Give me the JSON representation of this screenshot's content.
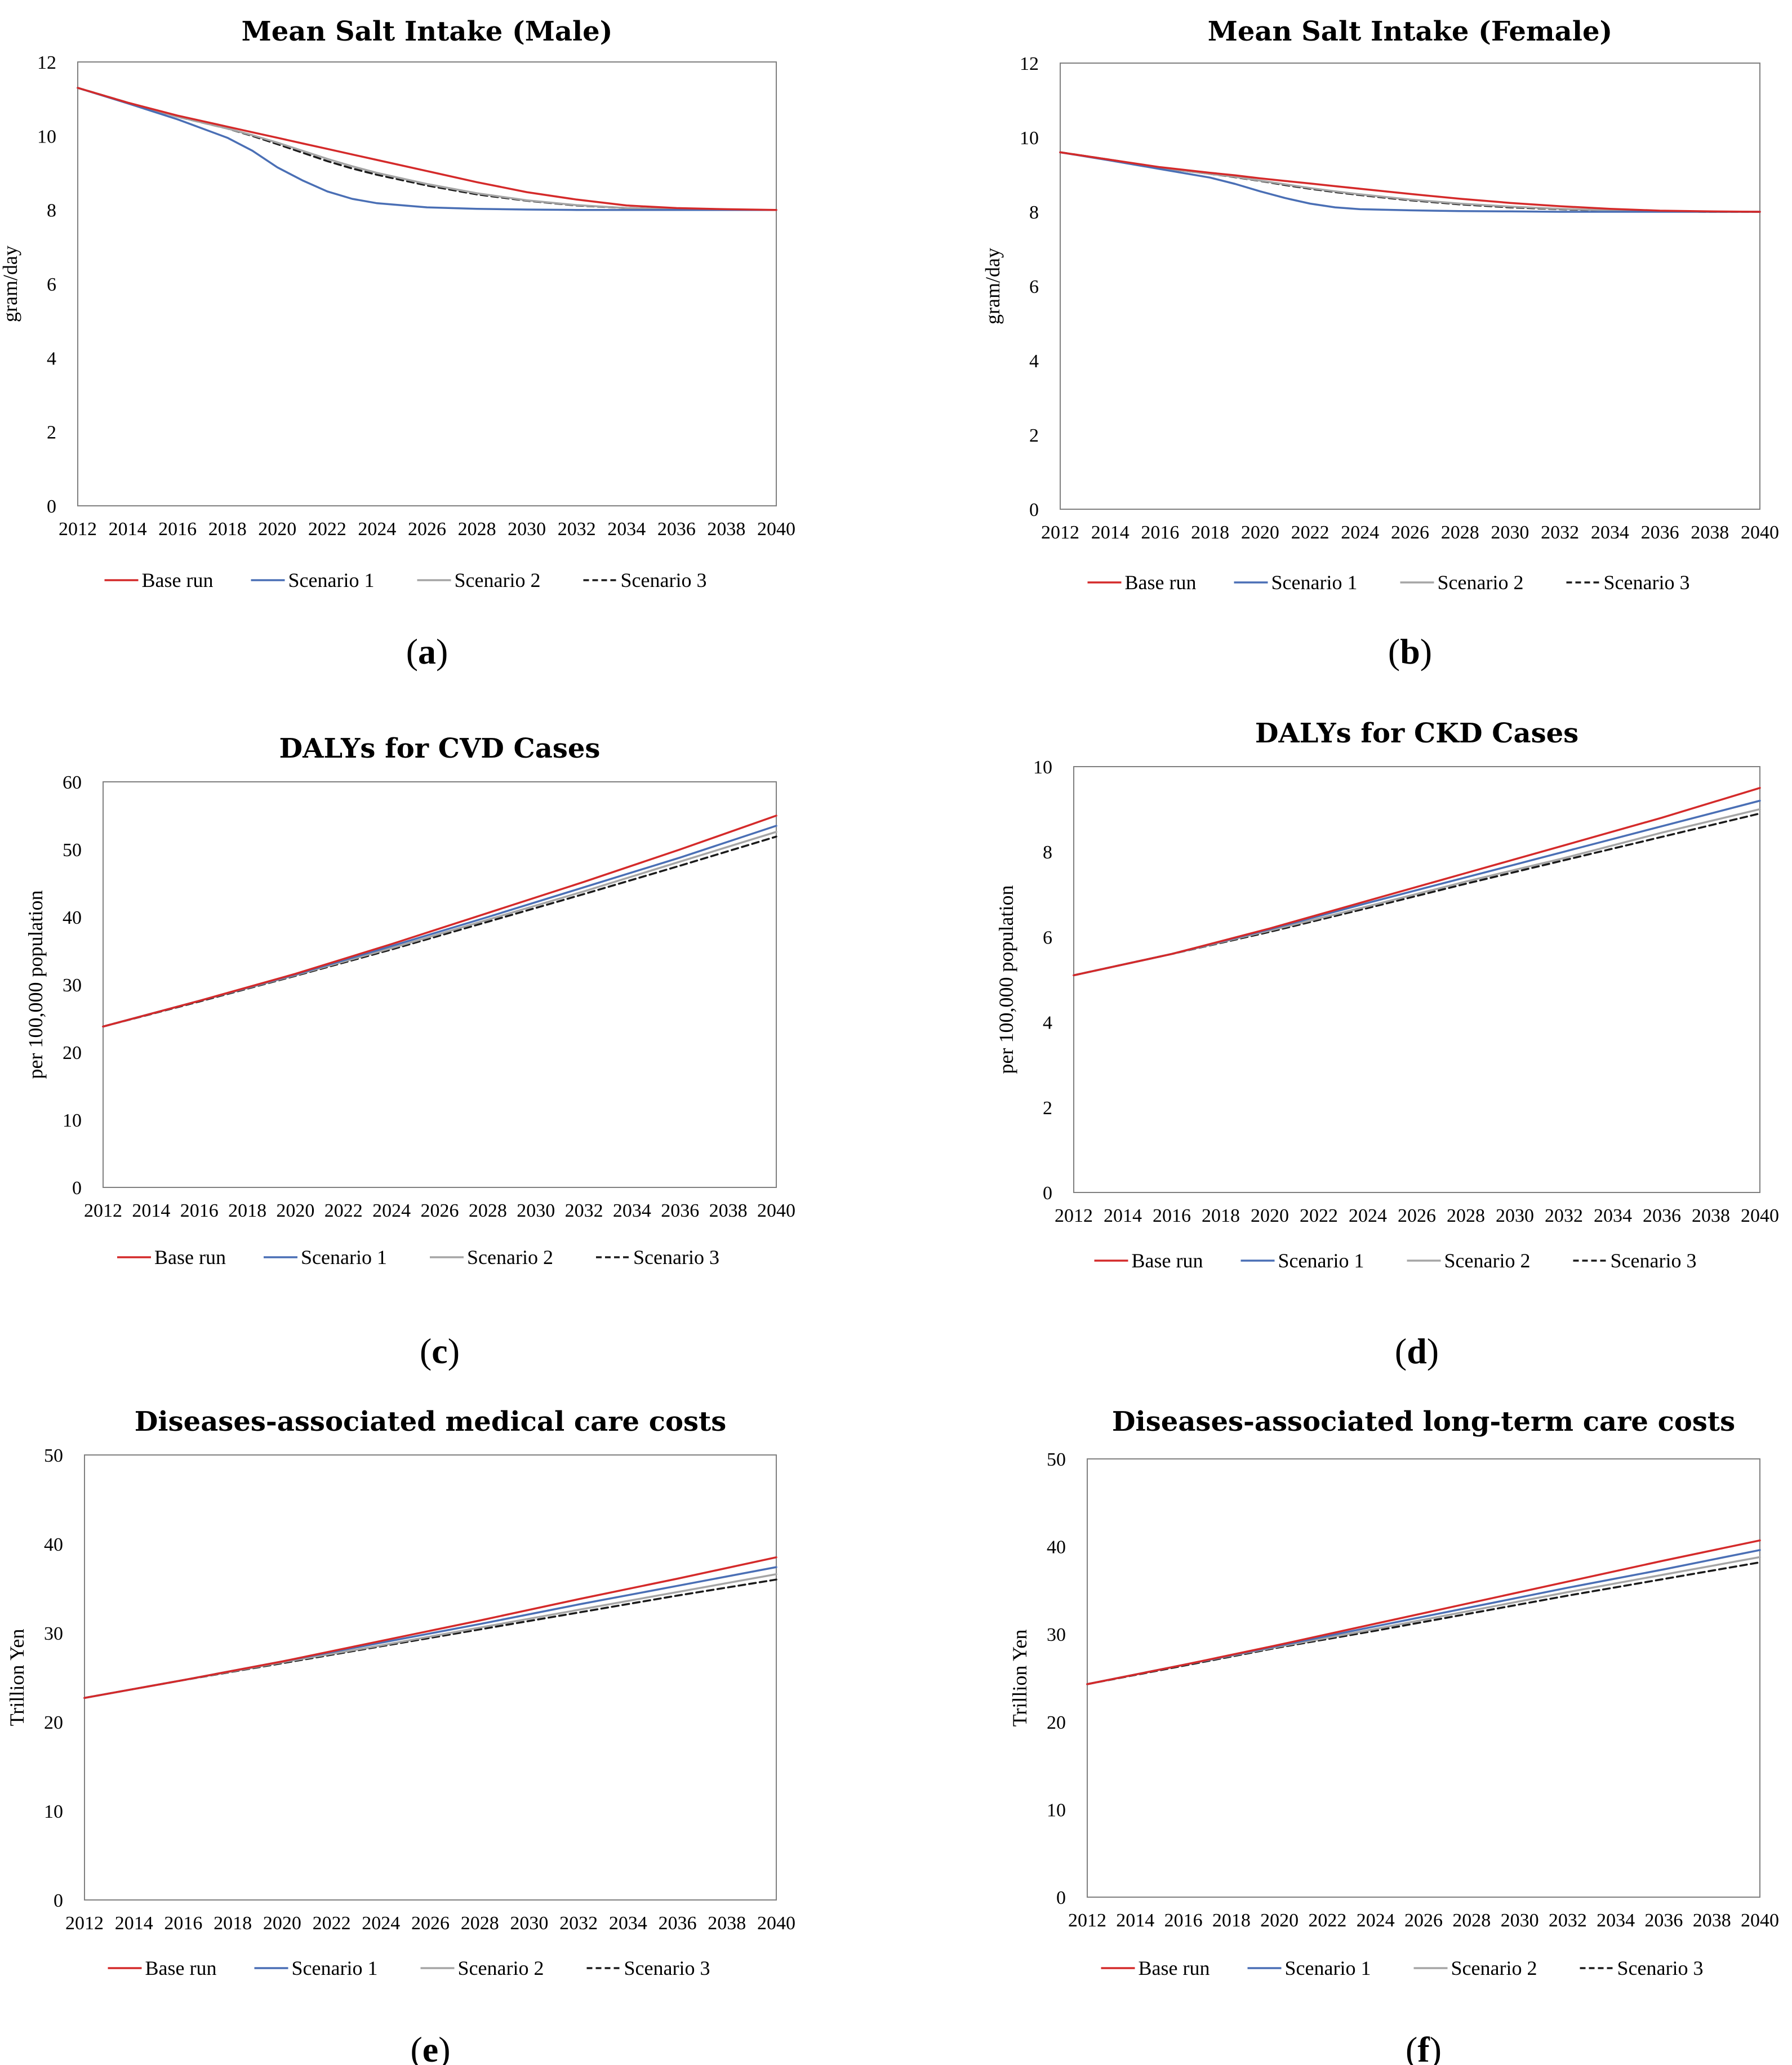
{
  "legend_style": {
    "Base run": {
      "color": "#d42a2a",
      "dash": ""
    },
    "Scenario 1": {
      "color": "#4a6fb5",
      "dash": ""
    },
    "Scenario 2": {
      "color": "#a5a5a5",
      "dash": ""
    },
    "Scenario 3": {
      "color": "#1a1a1a",
      "dash": "12,7"
    }
  },
  "chart_data": [
    {
      "panel": "a",
      "type": "line",
      "title": "Mean Salt Intake (Male)",
      "ylabel": "gram/day",
      "xlabel": "",
      "ylim": [
        0,
        12
      ],
      "yticks": [
        0,
        2,
        4,
        6,
        8,
        10,
        12
      ],
      "xticks": [
        2012,
        2014,
        2016,
        2018,
        2020,
        2022,
        2024,
        2026,
        2028,
        2030,
        2032,
        2034,
        2036,
        2038,
        2040
      ],
      "legend": "bottom",
      "x": [
        2012,
        2014,
        2016,
        2018,
        2019,
        2020,
        2021,
        2022,
        2023,
        2024,
        2026,
        2028,
        2030,
        2032,
        2034,
        2036,
        2038,
        2040
      ],
      "series": [
        {
          "name": "Base run",
          "values": [
            11.3,
            10.9,
            10.55,
            10.25,
            10.1,
            9.95,
            9.8,
            9.65,
            9.5,
            9.35,
            9.05,
            8.75,
            8.48,
            8.28,
            8.12,
            8.05,
            8.02,
            8.0
          ]
        },
        {
          "name": "Scenario 1",
          "values": [
            11.3,
            10.88,
            10.45,
            9.95,
            9.6,
            9.15,
            8.8,
            8.5,
            8.3,
            8.18,
            8.07,
            8.03,
            8.01,
            8.0,
            8.0,
            8.0,
            8.0,
            8.0
          ]
        },
        {
          "name": "Scenario 2",
          "values": [
            11.3,
            10.9,
            10.52,
            10.2,
            10.02,
            9.82,
            9.6,
            9.38,
            9.18,
            9.0,
            8.7,
            8.45,
            8.26,
            8.13,
            8.05,
            8.02,
            8.0,
            8.0
          ]
        },
        {
          "name": "Scenario 3",
          "values": [
            11.3,
            10.9,
            10.52,
            10.2,
            10.0,
            9.78,
            9.55,
            9.32,
            9.12,
            8.95,
            8.66,
            8.42,
            8.25,
            8.12,
            8.05,
            8.02,
            8.0,
            8.0
          ]
        }
      ]
    },
    {
      "panel": "b",
      "type": "line",
      "title": "Mean Salt Intake (Female)",
      "ylabel": "gram/day",
      "xlabel": "",
      "ylim": [
        0,
        12
      ],
      "yticks": [
        0,
        2,
        4,
        6,
        8,
        10,
        12
      ],
      "xticks": [
        2012,
        2014,
        2016,
        2018,
        2020,
        2022,
        2024,
        2026,
        2028,
        2030,
        2032,
        2034,
        2036,
        2038,
        2040
      ],
      "legend": "bottom",
      "x": [
        2012,
        2014,
        2016,
        2018,
        2019,
        2020,
        2021,
        2022,
        2023,
        2024,
        2026,
        2028,
        2030,
        2032,
        2034,
        2036,
        2038,
        2040
      ],
      "series": [
        {
          "name": "Base run",
          "values": [
            9.6,
            9.4,
            9.2,
            9.05,
            8.98,
            8.9,
            8.83,
            8.76,
            8.69,
            8.62,
            8.48,
            8.35,
            8.24,
            8.15,
            8.08,
            8.03,
            8.01,
            8.0
          ]
        },
        {
          "name": "Scenario 1",
          "values": [
            9.6,
            9.38,
            9.15,
            8.92,
            8.75,
            8.55,
            8.37,
            8.22,
            8.12,
            8.07,
            8.04,
            8.02,
            8.01,
            8.0,
            8.0,
            8.0,
            8.0,
            8.0
          ]
        },
        {
          "name": "Scenario 2",
          "values": [
            9.6,
            9.4,
            9.18,
            9.02,
            8.94,
            8.84,
            8.74,
            8.64,
            8.55,
            8.47,
            8.33,
            8.22,
            8.14,
            8.08,
            8.04,
            8.02,
            8.0,
            8.0
          ]
        },
        {
          "name": "Scenario 3",
          "values": [
            9.6,
            9.4,
            9.18,
            9.02,
            8.93,
            8.83,
            8.72,
            8.62,
            8.53,
            8.45,
            8.31,
            8.2,
            8.12,
            8.07,
            8.03,
            8.01,
            8.0,
            8.0
          ]
        }
      ]
    },
    {
      "panel": "c",
      "type": "line",
      "title": "DALYs for CVD Cases",
      "ylabel": "per 100,000 population",
      "xlabel": "",
      "ylim": [
        0,
        60
      ],
      "yticks": [
        0,
        10,
        20,
        30,
        40,
        50,
        60
      ],
      "xticks": [
        2012,
        2014,
        2016,
        2018,
        2020,
        2022,
        2024,
        2026,
        2028,
        2030,
        2032,
        2034,
        2036,
        2038,
        2040
      ],
      "legend": "bottom",
      "x": [
        2012,
        2016,
        2020,
        2024,
        2028,
        2032,
        2036,
        2040
      ],
      "series": [
        {
          "name": "Base run",
          "values": [
            23.8,
            27.6,
            31.6,
            36.0,
            40.6,
            45.2,
            50.0,
            55.0
          ]
        },
        {
          "name": "Scenario 1",
          "values": [
            23.8,
            27.6,
            31.5,
            35.7,
            40.0,
            44.4,
            48.8,
            53.5
          ]
        },
        {
          "name": "Scenario 2",
          "values": [
            23.8,
            27.6,
            31.4,
            35.4,
            39.6,
            43.8,
            48.2,
            52.6
          ]
        },
        {
          "name": "Scenario 3",
          "values": [
            23.8,
            27.5,
            31.3,
            35.2,
            39.3,
            43.4,
            47.6,
            51.9
          ]
        }
      ]
    },
    {
      "panel": "d",
      "type": "line",
      "title": "DALYs for CKD Cases",
      "ylabel": "per 100,000 population",
      "xlabel": "",
      "ylim": [
        0,
        10
      ],
      "yticks": [
        0,
        2,
        4,
        6,
        8,
        10
      ],
      "xticks": [
        2012,
        2014,
        2016,
        2018,
        2020,
        2022,
        2024,
        2026,
        2028,
        2030,
        2032,
        2034,
        2036,
        2038,
        2040
      ],
      "legend": "bottom",
      "x": [
        2012,
        2016,
        2020,
        2024,
        2028,
        2032,
        2036,
        2040
      ],
      "series": [
        {
          "name": "Base run",
          "values": [
            5.1,
            5.6,
            6.2,
            6.85,
            7.5,
            8.15,
            8.8,
            9.5
          ]
        },
        {
          "name": "Scenario 1",
          "values": [
            5.1,
            5.6,
            6.18,
            6.8,
            7.4,
            8.0,
            8.6,
            9.2
          ]
        },
        {
          "name": "Scenario 2",
          "values": [
            5.1,
            5.6,
            6.15,
            6.72,
            7.3,
            7.85,
            8.45,
            9.0
          ]
        },
        {
          "name": "Scenario 3",
          "values": [
            5.1,
            5.6,
            6.12,
            6.68,
            7.25,
            7.8,
            8.35,
            8.9
          ]
        }
      ]
    },
    {
      "panel": "e",
      "type": "line",
      "title": "Diseases-associated medical care costs",
      "ylabel": "Trillion Yen",
      "xlabel": "",
      "ylim": [
        0,
        50
      ],
      "yticks": [
        0,
        10,
        20,
        30,
        40,
        50
      ],
      "xticks": [
        2012,
        2014,
        2016,
        2018,
        2020,
        2022,
        2024,
        2026,
        2028,
        2030,
        2032,
        2034,
        2036,
        2038,
        2040
      ],
      "legend": "bottom",
      "x": [
        2012,
        2016,
        2020,
        2024,
        2028,
        2032,
        2036,
        2040
      ],
      "series": [
        {
          "name": "Base run",
          "values": [
            22.7,
            24.7,
            26.8,
            29.1,
            31.4,
            33.8,
            36.1,
            38.5
          ]
        },
        {
          "name": "Scenario 1",
          "values": [
            22.7,
            24.7,
            26.8,
            28.9,
            31.0,
            33.2,
            35.3,
            37.4
          ]
        },
        {
          "name": "Scenario 2",
          "values": [
            22.7,
            24.7,
            26.7,
            28.6,
            30.6,
            32.6,
            34.6,
            36.6
          ]
        },
        {
          "name": "Scenario 3",
          "values": [
            22.7,
            24.7,
            26.6,
            28.5,
            30.4,
            32.3,
            34.2,
            36.0
          ]
        }
      ]
    },
    {
      "panel": "f",
      "type": "line",
      "title": "Diseases-associated long-term care costs",
      "ylabel": "Trillion Yen",
      "xlabel": "",
      "ylim": [
        0,
        50
      ],
      "yticks": [
        0,
        10,
        20,
        30,
        40,
        50
      ],
      "xticks": [
        2012,
        2014,
        2016,
        2018,
        2020,
        2022,
        2024,
        2026,
        2028,
        2030,
        2032,
        2034,
        2036,
        2038,
        2040
      ],
      "legend": "bottom",
      "x": [
        2012,
        2016,
        2020,
        2024,
        2028,
        2032,
        2036,
        2040
      ],
      "series": [
        {
          "name": "Base run",
          "values": [
            24.3,
            26.5,
            28.8,
            31.2,
            33.6,
            36.0,
            38.4,
            40.7
          ]
        },
        {
          "name": "Scenario 1",
          "values": [
            24.3,
            26.5,
            28.7,
            30.9,
            33.1,
            35.3,
            37.4,
            39.6
          ]
        },
        {
          "name": "Scenario 2",
          "values": [
            24.3,
            26.5,
            28.6,
            30.6,
            32.7,
            34.8,
            36.8,
            38.8
          ]
        },
        {
          "name": "Scenario 3",
          "values": [
            24.3,
            26.4,
            28.5,
            30.4,
            32.4,
            34.4,
            36.3,
            38.2
          ]
        }
      ]
    }
  ]
}
